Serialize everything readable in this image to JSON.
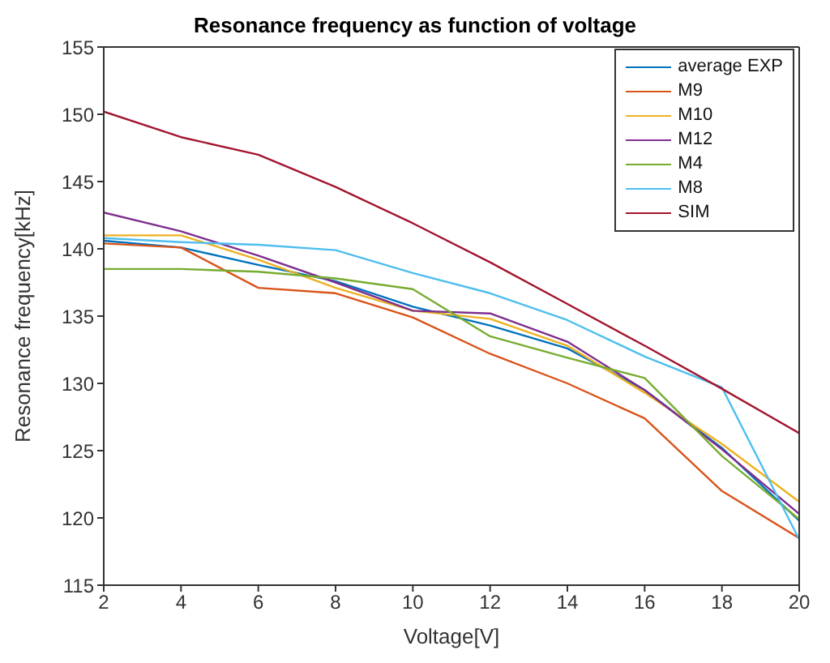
{
  "chart_data": {
    "type": "line",
    "title": "Resonance frequency as function of voltage",
    "xlabel": "Voltage[V]",
    "ylabel": "Resonance frequency[kHz]",
    "x": [
      2,
      4,
      6,
      8,
      10,
      12,
      14,
      16,
      18,
      20
    ],
    "series": [
      {
        "name": "average EXP",
        "color": "#0072bd",
        "values": [
          140.6,
          140.1,
          138.8,
          137.6,
          135.7,
          134.3,
          132.6,
          129.5,
          125.2,
          119.8
        ]
      },
      {
        "name": "M9",
        "color": "#d95319",
        "values": [
          140.4,
          140.1,
          137.1,
          136.7,
          134.9,
          132.2,
          130,
          127.4,
          122,
          118.5
        ]
      },
      {
        "name": "M10",
        "color": "#edb120",
        "values": [
          141,
          141,
          139.2,
          137.1,
          135.4,
          134.8,
          132.8,
          129.3,
          125.5,
          121.2
        ]
      },
      {
        "name": "M12",
        "color": "#7e2f8e",
        "values": [
          142.7,
          141.3,
          139.5,
          137.5,
          135.4,
          135.2,
          133.1,
          129.5,
          125.1,
          120.3
        ]
      },
      {
        "name": "M4",
        "color": "#77ac30",
        "values": [
          138.5,
          138.5,
          138.3,
          137.8,
          137,
          133.5,
          131.9,
          130.4,
          124.6,
          119.9
        ]
      },
      {
        "name": "M8",
        "color": "#4dbeee",
        "values": [
          140.8,
          140.5,
          140.3,
          139.9,
          138.2,
          136.7,
          134.7,
          132,
          129.7,
          118.4
        ]
      },
      {
        "name": "SIM",
        "color": "#a2142f",
        "values": [
          150.2,
          148.3,
          147,
          144.6,
          141.9,
          139,
          135.9,
          132.8,
          129.6,
          126.3
        ]
      }
    ],
    "xlim": [
      2,
      20
    ],
    "xticks": [
      2,
      4,
      6,
      8,
      10,
      12,
      14,
      16,
      18,
      20
    ],
    "ylim": [
      115,
      155
    ],
    "yticks": [
      115,
      120,
      125,
      130,
      135,
      140,
      145,
      150,
      155
    ],
    "grid": false,
    "legend": "top right",
    "marker": "none",
    "line_style": "solid"
  }
}
